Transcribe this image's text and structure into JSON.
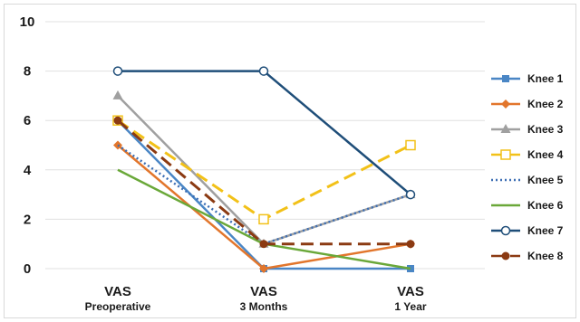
{
  "chart_data": {
    "type": "line",
    "categories": [
      {
        "line1": "VAS",
        "line2": "Preoperative"
      },
      {
        "line1": "VAS",
        "line2": "3 Months"
      },
      {
        "line1": "VAS",
        "line2": "1 Year"
      }
    ],
    "ylim": [
      0,
      10
    ],
    "yticks": [
      "0",
      "2",
      "4",
      "6",
      "8",
      "10"
    ],
    "grid": true,
    "legend_position": "right",
    "series": [
      {
        "name": "Knee 1",
        "values": [
          6,
          0,
          0
        ],
        "color": "#4a86c5",
        "dash": "solid",
        "marker": "square"
      },
      {
        "name": "Knee 2",
        "values": [
          5,
          0,
          1
        ],
        "color": "#e2762c",
        "dash": "solid",
        "marker": "diamond"
      },
      {
        "name": "Knee 3",
        "values": [
          7,
          1,
          3
        ],
        "color": "#a0a0a0",
        "dash": "solid",
        "marker": "triangle"
      },
      {
        "name": "Knee 4",
        "values": [
          6,
          2,
          5
        ],
        "color": "#f2c118",
        "dash": "dashed",
        "marker": "open-square"
      },
      {
        "name": "Knee 5",
        "values": [
          5,
          1,
          3
        ],
        "color": "#3c6eb4",
        "dash": "dotted",
        "marker": "none"
      },
      {
        "name": "Knee 6",
        "values": [
          4,
          1,
          0
        ],
        "color": "#6aa839",
        "dash": "solid",
        "marker": "none"
      },
      {
        "name": "Knee 7",
        "values": [
          8,
          8,
          3
        ],
        "color": "#1f4e79",
        "dash": "solid",
        "marker": "open-circle"
      },
      {
        "name": "Knee 8",
        "values": [
          6,
          1,
          1
        ],
        "color": "#8b3a12",
        "dash": "dashed",
        "marker": "circle"
      }
    ]
  }
}
